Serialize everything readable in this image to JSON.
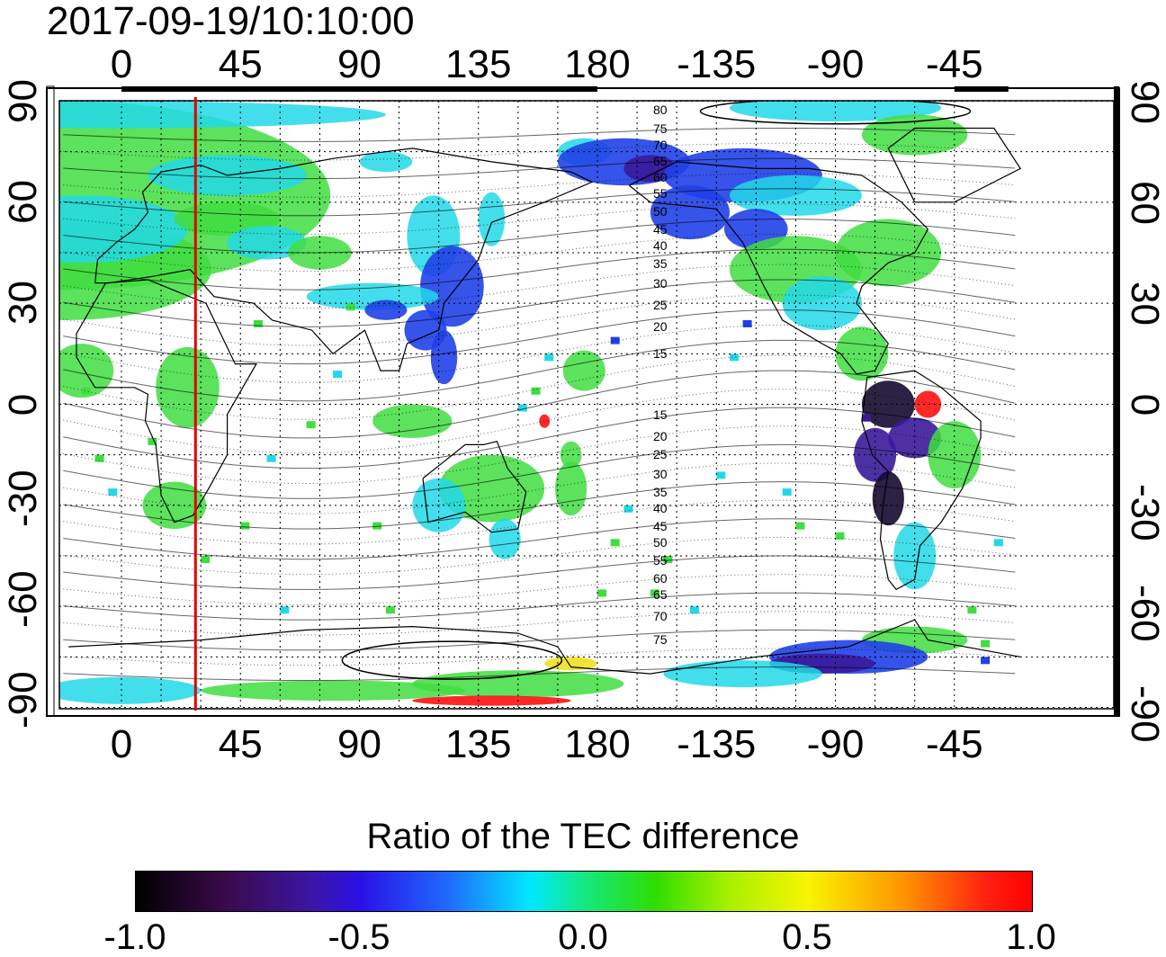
{
  "timestamp": "2017-09-19/10:10:00",
  "longitude_ticks": [
    {
      "value": 0,
      "label": "0"
    },
    {
      "value": 45,
      "label": "45"
    },
    {
      "value": 90,
      "label": "90"
    },
    {
      "value": 135,
      "label": "135"
    },
    {
      "value": 180,
      "label": "180"
    },
    {
      "value": 225,
      "label": "-135"
    },
    {
      "value": 270,
      "label": "-90"
    },
    {
      "value": 315,
      "label": "-45"
    }
  ],
  "latitude_ticks": [
    {
      "value": 90,
      "label": "90"
    },
    {
      "value": 60,
      "label": "60"
    },
    {
      "value": 30,
      "label": "30"
    },
    {
      "value": 0,
      "label": "0"
    },
    {
      "value": -30,
      "label": "-30"
    },
    {
      "value": -60,
      "label": "-60"
    },
    {
      "value": -90,
      "label": "-90"
    }
  ],
  "magnetic_latitude_labels": {
    "north": [
      "80",
      "75",
      "70",
      "65",
      "60",
      "55",
      "50",
      "45",
      "40",
      "35",
      "30",
      "25",
      "20",
      "15"
    ],
    "south": [
      "15",
      "20",
      "25",
      "30",
      "35",
      "40",
      "45",
      "50",
      "55",
      "60",
      "65",
      "70",
      "75"
    ]
  },
  "terminator_longitude": 28,
  "colorbar": {
    "title": "Ratio of the TEC difference",
    "min": -1.0,
    "max": 1.0,
    "tick_labels": [
      "-1.0",
      "-0.5",
      "0.0",
      "0.5",
      "1.0"
    ]
  },
  "colors": {
    "terminator": "#e00000",
    "green": "#3fdd40",
    "cyan": "#22d8e8",
    "blue": "#2040e8",
    "purple": "#3a1a9a",
    "dark": "#140a30",
    "red": "#ff1010",
    "yellow": "#f0e020"
  }
}
